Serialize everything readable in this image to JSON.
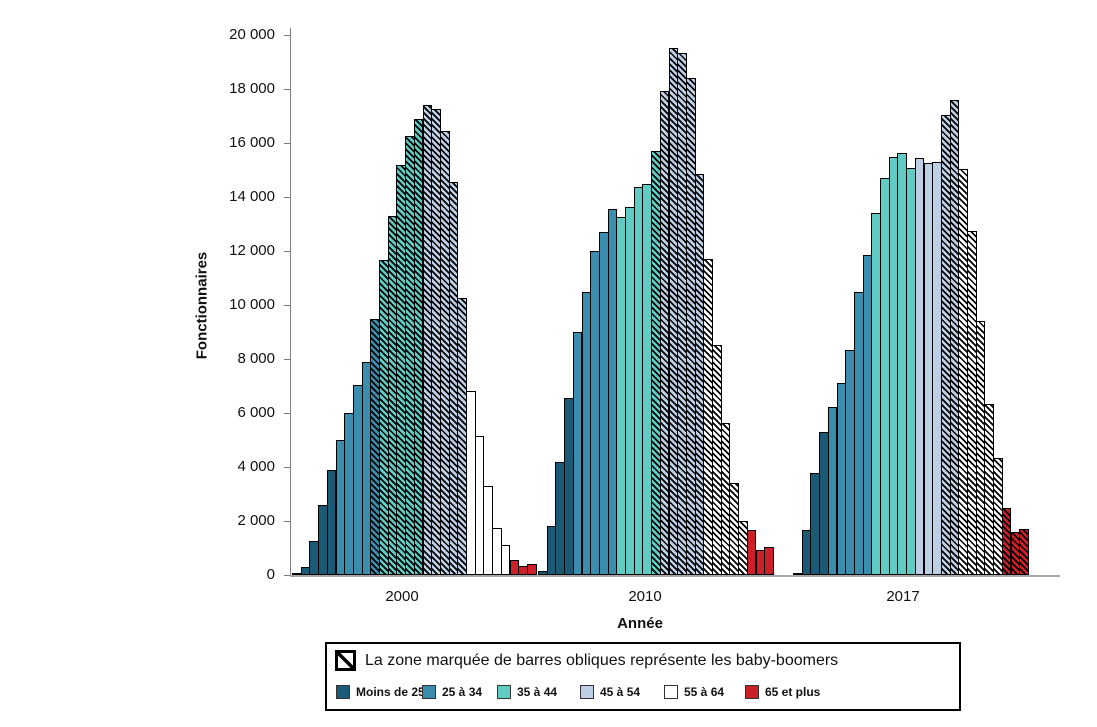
{
  "legend": {
    "note": "La zone marquée de barres obliques représente les baby-boomers",
    "items": [
      {
        "id": "lt25",
        "label": "Moins de 25",
        "color": "#1b5a74"
      },
      {
        "id": "a2534",
        "label": "25 à 34",
        "color": "#3a8dac"
      },
      {
        "id": "a3544",
        "label": "35 à 44",
        "color": "#60cbc3"
      },
      {
        "id": "a4554",
        "label": "45 à 54",
        "color": "#bdcfe5"
      },
      {
        "id": "a5564",
        "label": "55 à 64",
        "color": "#ffffff"
      },
      {
        "id": "a65",
        "label": "65 et plus",
        "color": "#cd1f27"
      }
    ],
    "hatch_color": "#000000"
  },
  "chart_data": {
    "type": "bar",
    "title": "",
    "xlabel": "Année",
    "ylabel": "Fonctionnaires",
    "ylim": [
      0,
      20000
    ],
    "ytick_step": 2000,
    "ytick_labels": [
      "0",
      "2 000",
      "4 000",
      "6 000",
      "8 000",
      "10 000",
      "12 000",
      "14 000",
      "16 000",
      "18 000",
      "20 000"
    ],
    "legend_position": "bottom",
    "grid": false,
    "hatch_meaning": "baby-boomers",
    "clusters": [
      {
        "year": "2000",
        "bars": [
          [
            60,
            "lt25",
            0
          ],
          [
            300,
            "lt25",
            0
          ],
          [
            1250,
            "lt25",
            0
          ],
          [
            2600,
            "lt25",
            0
          ],
          [
            3900,
            "lt25",
            0
          ],
          [
            5000,
            "a2534",
            0
          ],
          [
            6000,
            "a2534",
            0
          ],
          [
            7050,
            "a2534",
            0
          ],
          [
            7900,
            "a2534",
            0
          ],
          [
            9500,
            "a2534",
            1
          ],
          [
            11650,
            "a3544",
            1
          ],
          [
            13300,
            "a3544",
            1
          ],
          [
            15200,
            "a3544",
            1
          ],
          [
            16250,
            "a3544",
            1
          ],
          [
            16900,
            "a3544",
            1
          ],
          [
            17400,
            "a4554",
            1
          ],
          [
            17250,
            "a4554",
            1
          ],
          [
            16450,
            "a4554",
            1
          ],
          [
            14550,
            "a4554",
            1
          ],
          [
            10250,
            "a4554",
            1
          ],
          [
            6800,
            "a5564",
            0
          ],
          [
            5150,
            "a5564",
            0
          ],
          [
            3300,
            "a5564",
            0
          ],
          [
            1750,
            "a5564",
            0
          ],
          [
            1100,
            "a5564",
            0
          ],
          [
            550,
            "a65",
            0
          ],
          [
            330,
            "a65",
            0
          ],
          [
            420,
            "a65",
            0
          ]
        ]
      },
      {
        "year": "2010",
        "bars": [
          [
            150,
            "lt25",
            0
          ],
          [
            1800,
            "lt25",
            0
          ],
          [
            4170,
            "lt25",
            0
          ],
          [
            6540,
            "lt25",
            0
          ],
          [
            9010,
            "a2534",
            0
          ],
          [
            10470,
            "a2534",
            0
          ],
          [
            12010,
            "a2534",
            0
          ],
          [
            12715,
            "a2534",
            0
          ],
          [
            13545,
            "a2534",
            0
          ],
          [
            13245,
            "a3544",
            0
          ],
          [
            13615,
            "a3544",
            0
          ],
          [
            14360,
            "a3544",
            0
          ],
          [
            14480,
            "a3544",
            0
          ],
          [
            15715,
            "a3544",
            1
          ],
          [
            17940,
            "a4554",
            1
          ],
          [
            19505,
            "a4554",
            1
          ],
          [
            19320,
            "a4554",
            1
          ],
          [
            18395,
            "a4554",
            1
          ],
          [
            14850,
            "a4554",
            1
          ],
          [
            11700,
            "a5564",
            1
          ],
          [
            8520,
            "a5564",
            1
          ],
          [
            5630,
            "a5564",
            1
          ],
          [
            3400,
            "a5564",
            1
          ],
          [
            2000,
            "a5564",
            1
          ],
          [
            1650,
            "a65",
            0
          ],
          [
            930,
            "a65",
            0
          ],
          [
            1050,
            "a65",
            0
          ]
        ]
      },
      {
        "year": "2017",
        "bars": [
          [
            60,
            "lt25",
            0
          ],
          [
            1660,
            "lt25",
            0
          ],
          [
            3760,
            "lt25",
            0
          ],
          [
            5310,
            "lt25",
            0
          ],
          [
            6240,
            "a2534",
            0
          ],
          [
            7100,
            "a2534",
            0
          ],
          [
            8330,
            "a2534",
            0
          ],
          [
            10490,
            "a2534",
            0
          ],
          [
            11850,
            "a2534",
            0
          ],
          [
            13390,
            "a3544",
            0
          ],
          [
            14690,
            "a3544",
            0
          ],
          [
            15490,
            "a3544",
            0
          ],
          [
            15640,
            "a3544",
            0
          ],
          [
            15060,
            "a3544",
            0
          ],
          [
            15430,
            "a4554",
            0
          ],
          [
            15245,
            "a4554",
            0
          ],
          [
            15300,
            "a4554",
            0
          ],
          [
            17050,
            "a4554",
            1
          ],
          [
            17600,
            "a4554",
            1
          ],
          [
            15050,
            "a5564",
            1
          ],
          [
            12750,
            "a5564",
            1
          ],
          [
            9400,
            "a5564",
            1
          ],
          [
            6350,
            "a5564",
            1
          ],
          [
            4350,
            "a5564",
            1
          ],
          [
            2470,
            "a65",
            1
          ],
          [
            1600,
            "a65",
            1
          ],
          [
            1700,
            "a65",
            1
          ]
        ]
      }
    ]
  }
}
